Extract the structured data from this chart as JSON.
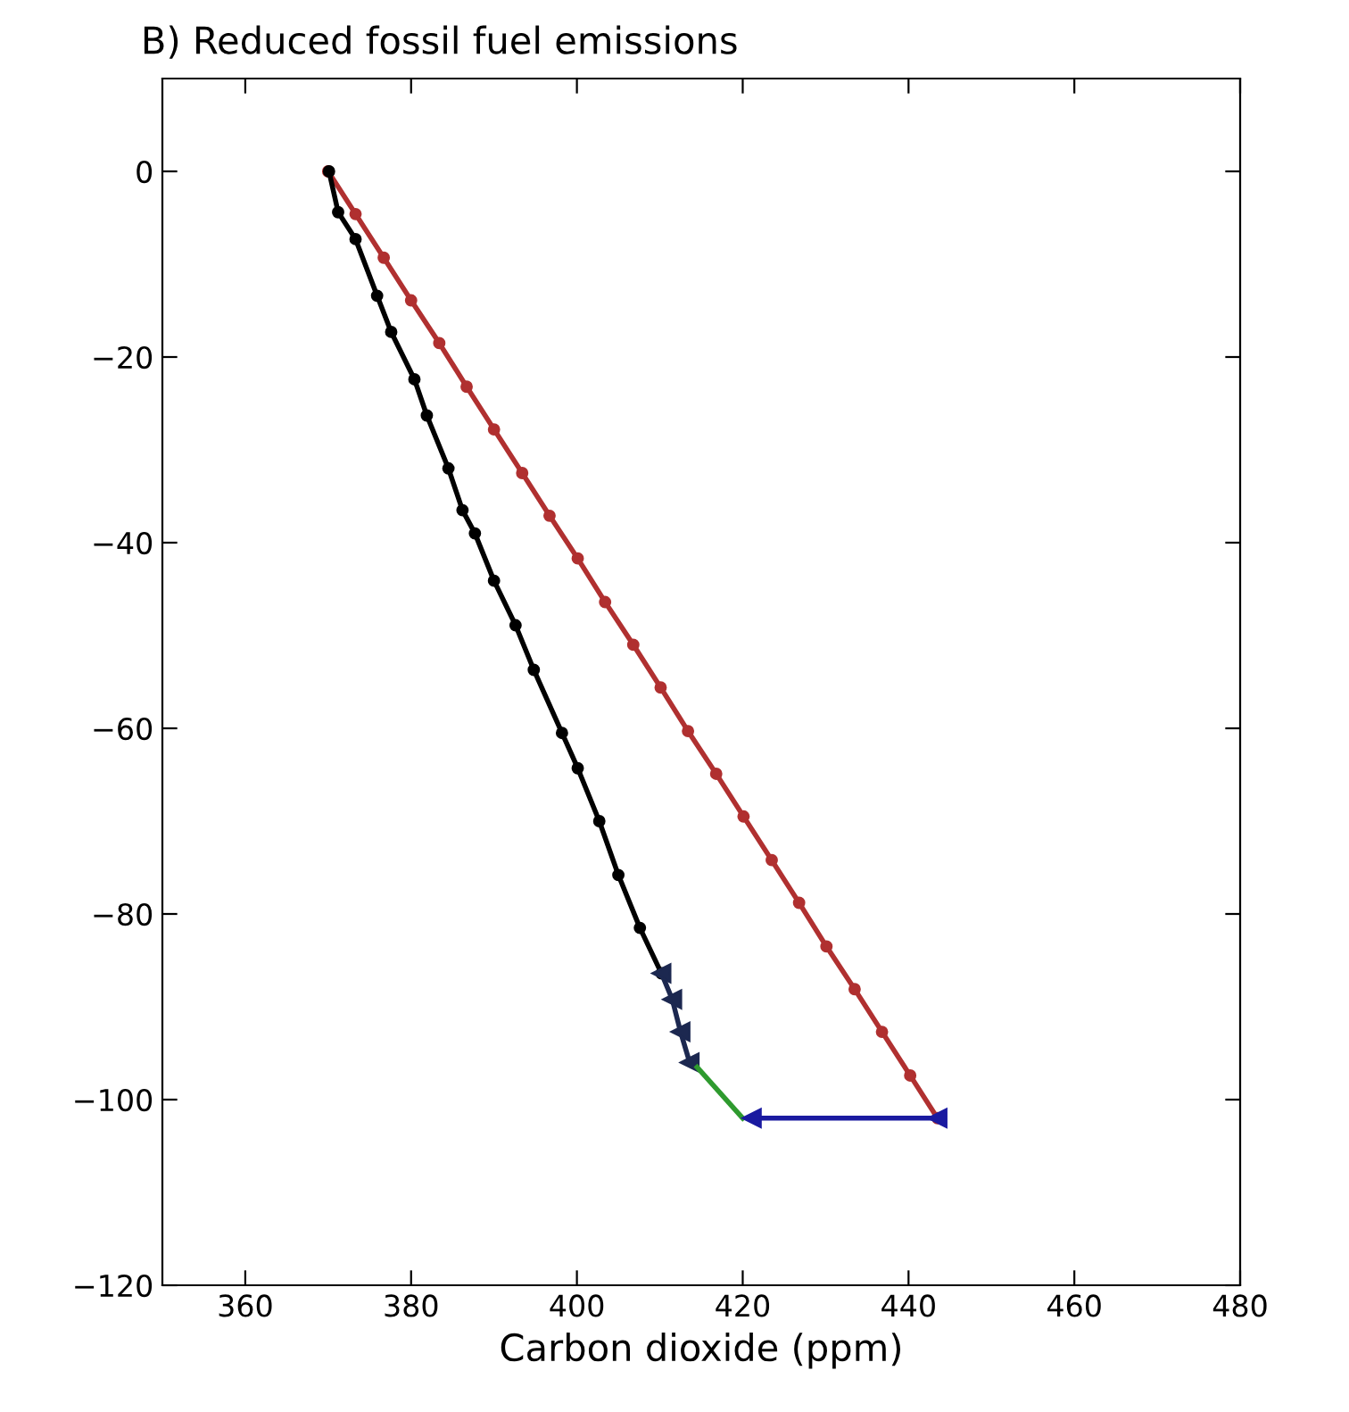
{
  "chart_data": {
    "type": "line",
    "title": "B) Reduced fossil fuel emissions",
    "xlabel": "Carbon dioxide (ppm)",
    "xlim": [
      350,
      480
    ],
    "xticks": [
      360,
      380,
      400,
      420,
      440,
      460,
      480
    ],
    "ylim": [
      -120,
      10
    ],
    "yticks": [
      0,
      -20,
      -40,
      -60,
      -80,
      -100,
      -120
    ],
    "grid": false,
    "legend": false,
    "series": [
      {
        "color": "#b03030",
        "marker": "circle",
        "x": [
          370,
          373.3,
          376.7,
          380.0,
          383.4,
          386.7,
          390.0,
          393.4,
          396.7,
          400.1,
          403.4,
          406.8,
          410.1,
          413.4,
          416.8,
          420.1,
          423.5,
          426.8,
          430.1,
          433.5,
          436.8,
          440.2,
          443.5
        ],
        "values": [
          0,
          -4.6,
          -9.3,
          -13.9,
          -18.5,
          -23.2,
          -27.8,
          -32.5,
          -37.1,
          -41.7,
          -46.4,
          -51.0,
          -55.6,
          -60.3,
          -64.9,
          -69.5,
          -74.2,
          -78.8,
          -83.5,
          -88.1,
          -92.7,
          -97.4,
          -102
        ]
      },
      {
        "color": "#000000",
        "marker": "circle",
        "x": [
          370.1,
          371.2,
          373.3,
          375.9,
          377.6,
          380.4,
          381.9,
          384.5,
          386.2,
          387.7,
          390.0,
          392.6,
          394.8,
          398.2,
          400.1,
          402.7,
          405.0,
          407.6,
          410.2
        ],
        "values": [
          0,
          -4.4,
          -7.3,
          -13.4,
          -17.3,
          -22.4,
          -26.3,
          -32,
          -36.5,
          -39,
          -44.1,
          -48.9,
          -53.7,
          -60.5,
          -64.3,
          -70,
          -75.8,
          -81.5,
          -86.4
        ]
      },
      {
        "color": "#1c2850",
        "marker": "triangle",
        "x": [
          410.2,
          411.5,
          412.5,
          413.6
        ],
        "values": [
          -86.4,
          -89.2,
          -92.7,
          -96
        ]
      },
      {
        "color": "#2e9a2e",
        "marker": "none",
        "x": [
          420.0,
          414.5
        ],
        "values": [
          -102,
          -96.5
        ]
      },
      {
        "color": "#1a1aa0",
        "marker": "triangle",
        "x": [
          443.5,
          421.1
        ],
        "values": [
          -102,
          -102
        ]
      }
    ]
  }
}
